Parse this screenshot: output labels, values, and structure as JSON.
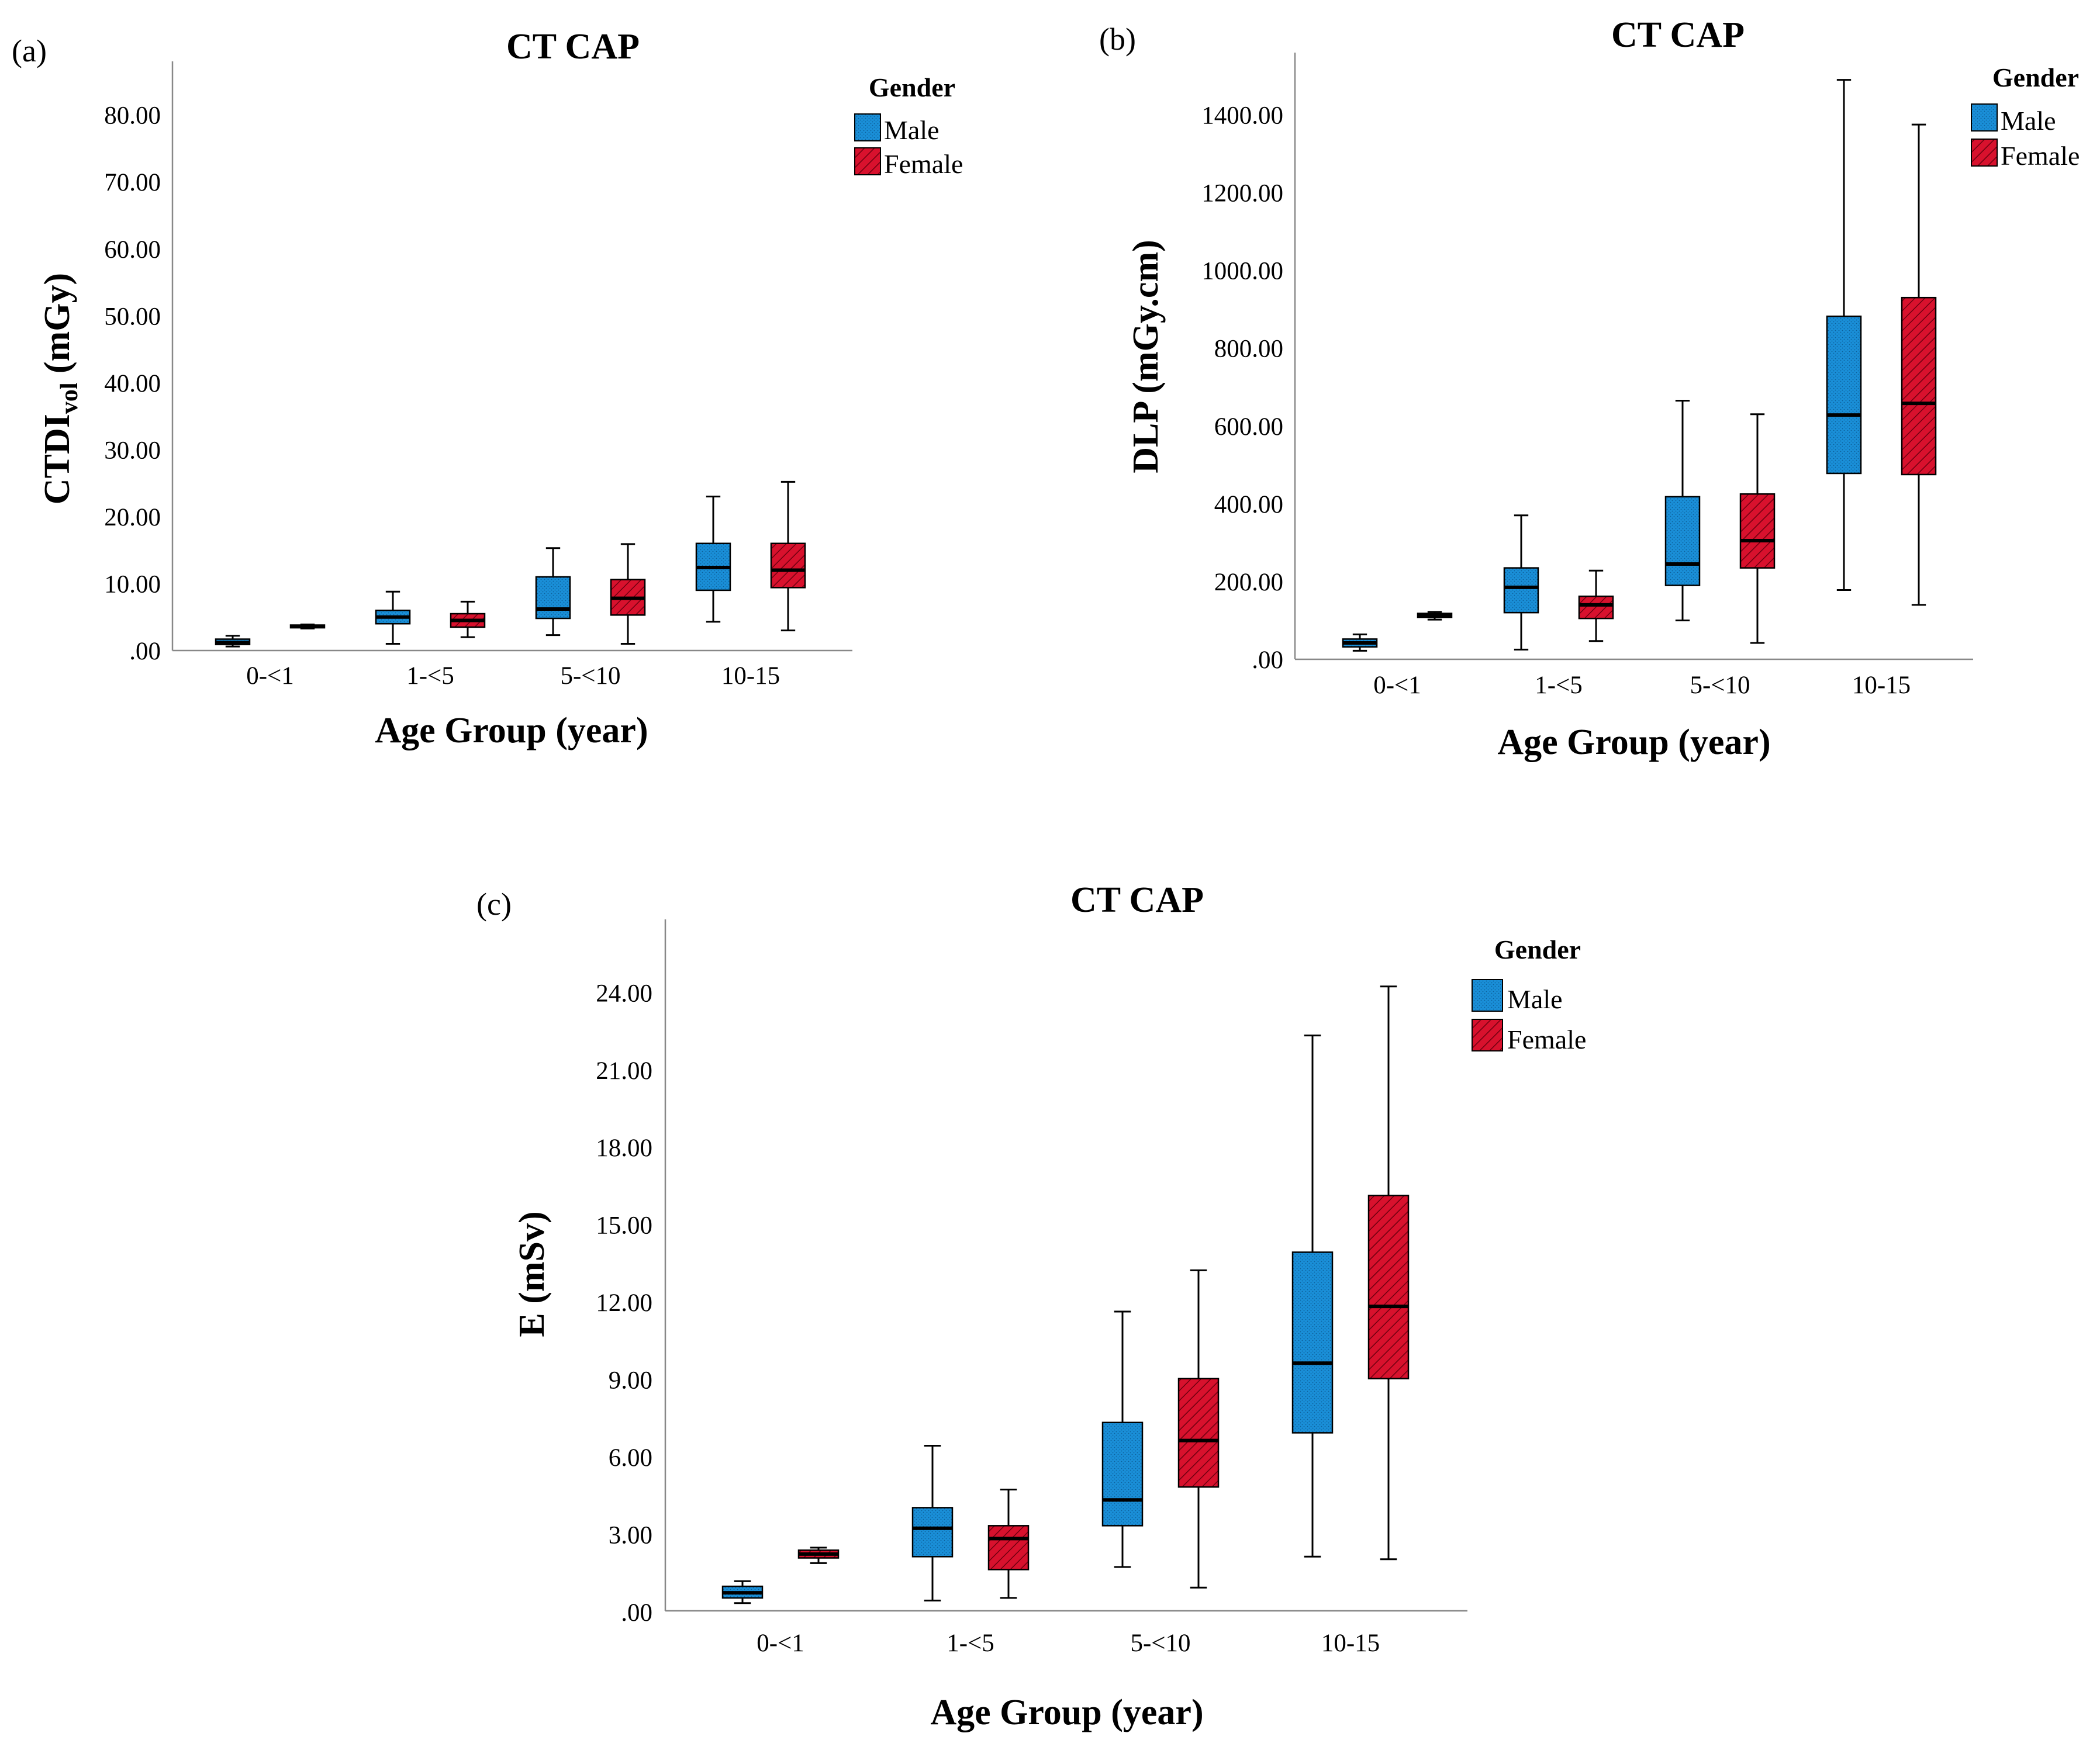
{
  "colors": {
    "male": "#1a8fd8",
    "female": "#d8112d",
    "axis": "#888888",
    "line": "#000000"
  },
  "chart_data": [
    {
      "panel": "(a)",
      "type": "boxplot",
      "title": "CT CAP",
      "xlabel": "Age Group (year)",
      "ylabel_main": "CTDI",
      "ylabel_sub": "vol",
      "ylabel_rest": " (mGy)",
      "ylim": [
        0,
        88
      ],
      "yticks": [
        ".00",
        "10.00",
        "20.00",
        "30.00",
        "40.00",
        "50.00",
        "60.00",
        "70.00",
        "80.00"
      ],
      "ytick_values": [
        0,
        10,
        20,
        30,
        40,
        50,
        60,
        70,
        80
      ],
      "categories": [
        "0-<1",
        "1-<5",
        "5-<10",
        "10-15"
      ],
      "legend": {
        "title": "Gender",
        "entries": [
          "Male",
          "Female"
        ],
        "position": "top-right"
      },
      "series": [
        {
          "name": "Male",
          "boxes": [
            {
              "min": 0.6,
              "q1": 0.9,
              "median": 1.2,
              "q3": 1.7,
              "max": 2.2
            },
            {
              "min": 1.0,
              "q1": 4.0,
              "median": 5.0,
              "q3": 6.0,
              "max": 8.8
            },
            {
              "min": 2.3,
              "q1": 4.8,
              "median": 6.2,
              "q3": 11.0,
              "max": 15.3
            },
            {
              "min": 4.3,
              "q1": 9.0,
              "median": 12.4,
              "q3": 16.0,
              "max": 23.0
            }
          ]
        },
        {
          "name": "Female",
          "boxes": [
            {
              "min": 3.3,
              "q1": 3.4,
              "median": 3.6,
              "q3": 3.8,
              "max": 3.9
            },
            {
              "min": 2.0,
              "q1": 3.5,
              "median": 4.5,
              "q3": 5.5,
              "max": 7.3
            },
            {
              "min": 1.0,
              "q1": 5.3,
              "median": 7.8,
              "q3": 10.6,
              "max": 15.9
            },
            {
              "min": 3.0,
              "q1": 9.4,
              "median": 12.0,
              "q3": 16.0,
              "max": 25.2
            }
          ]
        }
      ]
    },
    {
      "panel": "(b)",
      "type": "boxplot",
      "title": "CT CAP",
      "xlabel": "Age Group (year)",
      "ylabel_main": "DLP (mGy.cm)",
      "ylabel_sub": "",
      "ylabel_rest": "",
      "ylim": [
        0,
        1560
      ],
      "yticks": [
        ".00",
        "200.00",
        "400.00",
        "600.00",
        "800.00",
        "1000.00",
        "1200.00",
        "1400.00"
      ],
      "ytick_values": [
        0,
        200,
        400,
        600,
        800,
        1000,
        1200,
        1400
      ],
      "categories": [
        "0-<1",
        "1-<5",
        "5-<10",
        "10-15"
      ],
      "legend": {
        "title": "Gender",
        "entries": [
          "Male",
          "Female"
        ],
        "position": "top-right"
      },
      "series": [
        {
          "name": "Male",
          "boxes": [
            {
              "min": 22,
              "q1": 32,
              "median": 42,
              "q3": 52,
              "max": 64
            },
            {
              "min": 25,
              "q1": 120,
              "median": 185,
              "q3": 235,
              "max": 370
            },
            {
              "min": 100,
              "q1": 190,
              "median": 245,
              "q3": 418,
              "max": 665
            },
            {
              "min": 178,
              "q1": 478,
              "median": 628,
              "q3": 882,
              "max": 1490
            }
          ]
        },
        {
          "name": "Female",
          "boxes": [
            {
              "min": 102,
              "q1": 108,
              "median": 112,
              "q3": 118,
              "max": 122
            },
            {
              "min": 47,
              "q1": 105,
              "median": 140,
              "q3": 162,
              "max": 228
            },
            {
              "min": 42,
              "q1": 235,
              "median": 305,
              "q3": 425,
              "max": 630
            },
            {
              "min": 140,
              "q1": 475,
              "median": 658,
              "q3": 930,
              "max": 1375
            }
          ]
        }
      ]
    },
    {
      "panel": "(c)",
      "type": "boxplot",
      "title": "CT CAP",
      "xlabel": "Age Group (year)",
      "ylabel_main": "E (mSv)",
      "ylabel_sub": "",
      "ylabel_rest": "",
      "ylim": [
        0,
        26.8
      ],
      "yticks": [
        ".00",
        "3.00",
        "6.00",
        "9.00",
        "12.00",
        "15.00",
        "18.00",
        "21.00",
        "24.00"
      ],
      "ytick_values": [
        0,
        3,
        6,
        9,
        12,
        15,
        18,
        21,
        24
      ],
      "categories": [
        "0-<1",
        "1-<5",
        "5-<10",
        "10-15"
      ],
      "legend": {
        "title": "Gender",
        "entries": [
          "Male",
          "Female"
        ],
        "position": "top-right"
      },
      "series": [
        {
          "name": "Male",
          "boxes": [
            {
              "min": 0.3,
              "q1": 0.5,
              "median": 0.7,
              "q3": 0.95,
              "max": 1.15
            },
            {
              "min": 0.4,
              "q1": 2.1,
              "median": 3.2,
              "q3": 4.0,
              "max": 6.4
            },
            {
              "min": 1.7,
              "q1": 3.3,
              "median": 4.3,
              "q3": 7.3,
              "max": 11.6
            },
            {
              "min": 2.1,
              "q1": 6.9,
              "median": 9.6,
              "q3": 13.9,
              "max": 22.3
            }
          ]
        },
        {
          "name": "Female",
          "boxes": [
            {
              "min": 1.85,
              "q1": 2.05,
              "median": 2.2,
              "q3": 2.35,
              "max": 2.45
            },
            {
              "min": 0.5,
              "q1": 1.6,
              "median": 2.8,
              "q3": 3.3,
              "max": 4.7
            },
            {
              "min": 0.9,
              "q1": 4.8,
              "median": 6.6,
              "q3": 9.0,
              "max": 13.2
            },
            {
              "min": 2.0,
              "q1": 9.0,
              "median": 11.8,
              "q3": 16.1,
              "max": 24.2
            }
          ]
        }
      ]
    }
  ]
}
